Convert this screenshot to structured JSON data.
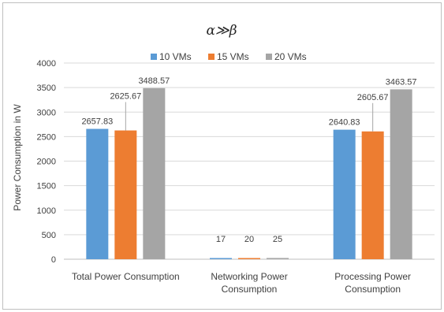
{
  "chart_data": {
    "type": "bar",
    "title": "α≫β",
    "ylabel": "Power Consumption in W",
    "xlabel": "",
    "ylim": [
      0,
      4000
    ],
    "yticks": [
      0,
      500,
      1000,
      1500,
      2000,
      2500,
      3000,
      3500,
      4000
    ],
    "grid": true,
    "legend_position": "top",
    "categories": [
      [
        "Total Power Consumption"
      ],
      [
        "Networking Power",
        "Consumption"
      ],
      [
        "Processing Power",
        "Consumption"
      ]
    ],
    "series": [
      {
        "name": "10 VMs",
        "color": "#5b9bd5",
        "values": [
          2657.83,
          17,
          2640.83
        ],
        "labels": [
          "2657.83",
          "17",
          "2640.83"
        ]
      },
      {
        "name": "15 VMs",
        "color": "#ed7d31",
        "values": [
          2625.67,
          20,
          2605.67
        ],
        "labels": [
          "2625.67",
          "20",
          "2605.67"
        ]
      },
      {
        "name": "20 VMs",
        "color": "#a5a5a5",
        "values": [
          3488.57,
          25,
          3463.57
        ],
        "labels": [
          "3488.57",
          "25",
          "3463.57"
        ]
      }
    ]
  }
}
